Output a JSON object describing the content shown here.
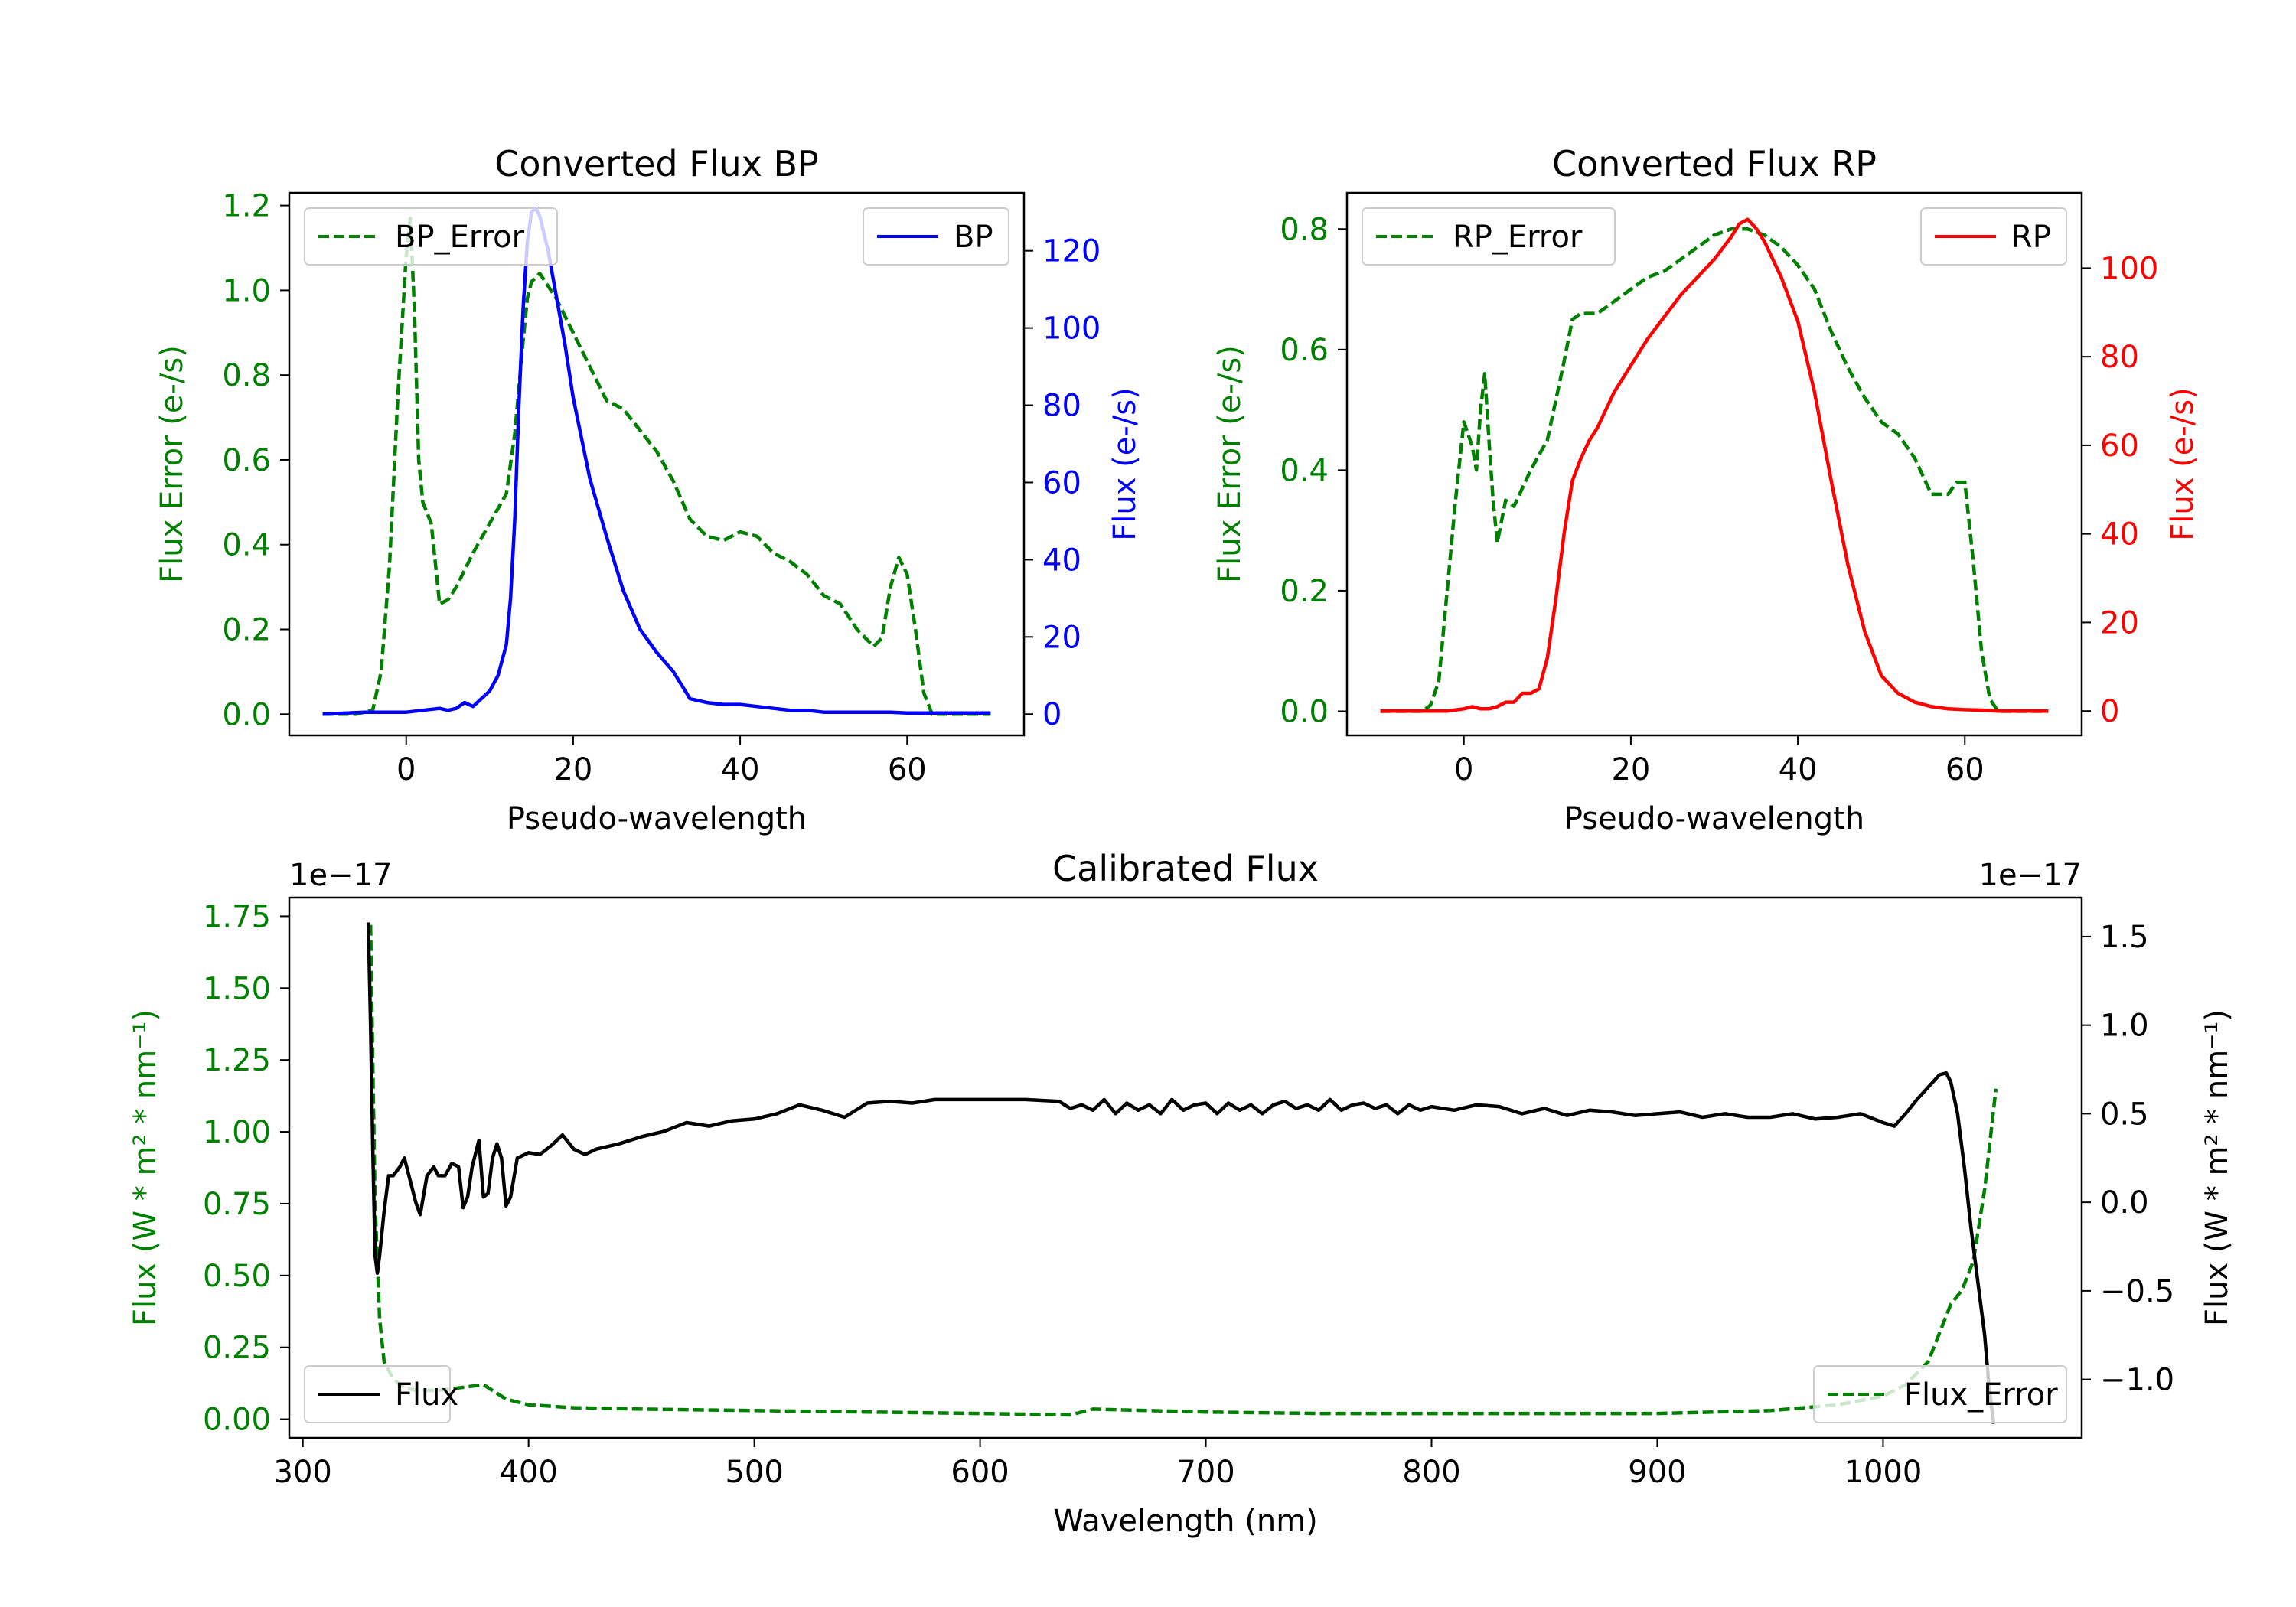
{
  "colors": {
    "bp": "#0000ff",
    "rp": "#ff0000",
    "error": "#008000",
    "flux": "#000000",
    "axes": "#000000",
    "legend_border": "#cccccc"
  },
  "chart_data": [
    {
      "id": "bp",
      "type": "line",
      "title": "Converted Flux BP",
      "xlabel": "Pseudo-wavelength",
      "ylabel_left": "Flux Error (e-/s)",
      "ylabel_right": "Flux (e-/s)",
      "xlim": [
        -14,
        74
      ],
      "ylim_left": [
        -0.05,
        1.23
      ],
      "ylim_right": [
        -5.5,
        135
      ],
      "xticks": [
        0,
        20,
        40,
        60
      ],
      "xtick_labels": [
        "0",
        "20",
        "40",
        "60"
      ],
      "yticks_left": [
        0.0,
        0.2,
        0.4,
        0.6,
        0.8,
        1.0,
        1.2
      ],
      "ytick_labels_left": [
        "0.0",
        "0.2",
        "0.4",
        "0.6",
        "0.8",
        "1.0",
        "1.2"
      ],
      "yticks_right": [
        0,
        20,
        40,
        60,
        80,
        100,
        120
      ],
      "ytick_labels_right": [
        "0",
        "20",
        "40",
        "60",
        "80",
        "100",
        "120"
      ],
      "legend_left": "BP_Error",
      "legend_right": "BP",
      "series": [
        {
          "name": "BP_Error",
          "axis": "left",
          "style": "dashed",
          "color": "#008000",
          "x": [
            -10,
            -6,
            -4,
            -3,
            -2,
            -1,
            0,
            0.5,
            1,
            1.5,
            2,
            3,
            4,
            5,
            6,
            8,
            10,
            12,
            13,
            14,
            14.5,
            15,
            16,
            17,
            18,
            20,
            22,
            24,
            26,
            28,
            30,
            32,
            34,
            36,
            38,
            40,
            42,
            44,
            46,
            48,
            50,
            52,
            54,
            56,
            57,
            58,
            59,
            60,
            61,
            62,
            63,
            64,
            66,
            68,
            70
          ],
          "y": [
            0,
            0,
            0.01,
            0.1,
            0.35,
            0.75,
            1.08,
            1.17,
            0.95,
            0.6,
            0.5,
            0.45,
            0.26,
            0.27,
            0.3,
            0.38,
            0.45,
            0.52,
            0.66,
            0.88,
            0.98,
            1.02,
            1.04,
            1.01,
            0.98,
            0.9,
            0.82,
            0.74,
            0.72,
            0.67,
            0.62,
            0.55,
            0.46,
            0.42,
            0.41,
            0.43,
            0.42,
            0.38,
            0.36,
            0.33,
            0.28,
            0.26,
            0.2,
            0.16,
            0.18,
            0.3,
            0.37,
            0.33,
            0.2,
            0.05,
            0,
            0,
            0,
            0,
            0
          ]
        },
        {
          "name": "BP",
          "axis": "right",
          "style": "solid",
          "color": "#0000ff",
          "x": [
            -10,
            -5,
            0,
            2,
            4,
            5,
            6,
            7,
            8,
            9,
            10,
            11,
            12,
            12.5,
            13,
            13.5,
            14,
            14.5,
            15,
            15.5,
            16,
            17,
            18,
            19,
            20,
            22,
            24,
            26,
            28,
            30,
            32,
            34,
            36,
            38,
            40,
            42,
            44,
            46,
            48,
            50,
            52,
            54,
            56,
            58,
            60,
            62,
            64,
            66,
            68,
            70
          ],
          "y": [
            0,
            0.5,
            0.5,
            1,
            1.5,
            1,
            1.5,
            3,
            2,
            4,
            6,
            10,
            18,
            30,
            50,
            80,
            105,
            122,
            130,
            131,
            129,
            120,
            108,
            96,
            82,
            61,
            46,
            32,
            22,
            16,
            11,
            4,
            3,
            2.5,
            2.5,
            2,
            1.5,
            1,
            1,
            0.5,
            0.5,
            0.5,
            0.5,
            0.5,
            0.3,
            0.3,
            0.3,
            0.3,
            0.3,
            0.3
          ]
        }
      ]
    },
    {
      "id": "rp",
      "type": "line",
      "title": "Converted Flux RP",
      "xlabel": "Pseudo-wavelength",
      "ylabel_left": "Flux Error (e-/s)",
      "ylabel_right": "Flux (e-/s)",
      "xlim": [
        -14,
        74
      ],
      "ylim_left": [
        -0.04,
        0.86
      ],
      "ylim_right": [
        -5.5,
        117
      ],
      "xticks": [
        0,
        20,
        40,
        60
      ],
      "xtick_labels": [
        "0",
        "20",
        "40",
        "60"
      ],
      "yticks_left": [
        0.0,
        0.2,
        0.4,
        0.6,
        0.8
      ],
      "ytick_labels_left": [
        "0.0",
        "0.2",
        "0.4",
        "0.6",
        "0.8"
      ],
      "yticks_right": [
        0,
        20,
        40,
        60,
        80,
        100
      ],
      "ytick_labels_right": [
        "0",
        "20",
        "40",
        "60",
        "80",
        "100"
      ],
      "legend_left": "RP_Error",
      "legend_right": "RP",
      "series": [
        {
          "name": "RP_Error",
          "axis": "left",
          "style": "dashed",
          "color": "#008000",
          "x": [
            -10,
            -5,
            -4,
            -3,
            -2,
            -1,
            0,
            1,
            1.5,
            2,
            2.5,
            3,
            3.5,
            4,
            5,
            6,
            8,
            10,
            12,
            13,
            14,
            16,
            18,
            20,
            22,
            24,
            26,
            28,
            30,
            32,
            34,
            36,
            38,
            40,
            42,
            44,
            46,
            48,
            50,
            52,
            54,
            56,
            57,
            58,
            59,
            60,
            61,
            62,
            63,
            64,
            65,
            66,
            68,
            70
          ],
          "y": [
            0,
            0,
            0.01,
            0.05,
            0.2,
            0.35,
            0.48,
            0.44,
            0.4,
            0.5,
            0.56,
            0.45,
            0.35,
            0.28,
            0.35,
            0.34,
            0.4,
            0.45,
            0.58,
            0.65,
            0.66,
            0.66,
            0.68,
            0.7,
            0.72,
            0.73,
            0.75,
            0.77,
            0.79,
            0.8,
            0.8,
            0.79,
            0.77,
            0.74,
            0.7,
            0.63,
            0.57,
            0.52,
            0.48,
            0.46,
            0.42,
            0.36,
            0.36,
            0.36,
            0.38,
            0.38,
            0.25,
            0.1,
            0.02,
            0,
            0,
            0,
            0,
            0
          ]
        },
        {
          "name": "RP",
          "axis": "right",
          "style": "solid",
          "color": "#ff0000",
          "x": [
            -10,
            -5,
            -2,
            0,
            1,
            2,
            3,
            4,
            5,
            6,
            7,
            8,
            9,
            10,
            11,
            12,
            13,
            14,
            15,
            16,
            18,
            20,
            22,
            24,
            26,
            28,
            30,
            32,
            33,
            34,
            35,
            36,
            38,
            40,
            42,
            44,
            46,
            48,
            50,
            52,
            54,
            56,
            58,
            60,
            62,
            64,
            66,
            68,
            70
          ],
          "y": [
            0,
            0,
            0,
            0.5,
            1,
            0.5,
            0.5,
            1,
            2,
            2,
            4,
            4,
            5,
            12,
            25,
            40,
            52,
            57,
            61,
            64,
            72,
            78,
            84,
            89,
            94,
            98,
            102,
            107,
            110,
            111,
            109,
            106,
            98,
            88,
            72,
            52,
            33,
            18,
            8,
            4,
            2,
            1,
            0.5,
            0.3,
            0.2,
            0,
            0,
            0,
            0
          ]
        }
      ]
    },
    {
      "id": "calibrated",
      "type": "line",
      "title": "Calibrated Flux",
      "xlabel": "Wavelength (nm)",
      "ylabel_left": "Flux (W * m² * nm⁻¹)",
      "ylabel_right": "Flux (W * m² * nm⁻¹)",
      "offset_left": "1e−17",
      "offset_right": "1e−17",
      "xlim": [
        294,
        1088
      ],
      "ylim_left": [
        -0.065,
        1.815
      ],
      "ylim_right": [
        -1.33,
        1.72
      ],
      "xticks": [
        300,
        400,
        500,
        600,
        700,
        800,
        900,
        1000
      ],
      "xtick_labels": [
        "300",
        "400",
        "500",
        "600",
        "700",
        "800",
        "900",
        "1000"
      ],
      "yticks_left": [
        0.0,
        0.25,
        0.5,
        0.75,
        1.0,
        1.25,
        1.5,
        1.75
      ],
      "ytick_labels_left": [
        "0.00",
        "0.25",
        "0.50",
        "0.75",
        "1.00",
        "1.25",
        "1.50",
        "1.75"
      ],
      "yticks_right": [
        -1.0,
        -0.5,
        0.0,
        0.5,
        1.0,
        1.5
      ],
      "ytick_labels_right": [
        "−1.0",
        "−0.5",
        "0.0",
        "0.5",
        "1.0",
        "1.5"
      ],
      "legend_left": "Flux",
      "legend_right": "Flux_Error",
      "series": [
        {
          "name": "Flux_Error",
          "axis": "left",
          "style": "dashed",
          "color": "#008000",
          "x": [
            330,
            332,
            334,
            336,
            340,
            345,
            350,
            360,
            370,
            380,
            390,
            400,
            420,
            450,
            500,
            550,
            600,
            640,
            650,
            700,
            750,
            800,
            850,
            900,
            950,
            980,
            1000,
            1010,
            1020,
            1025,
            1030,
            1035,
            1040,
            1045,
            1050
          ],
          "y": [
            1.72,
            0.75,
            0.35,
            0.2,
            0.14,
            0.11,
            0.1,
            0.1,
            0.11,
            0.12,
            0.07,
            0.05,
            0.04,
            0.035,
            0.03,
            0.025,
            0.02,
            0.015,
            0.035,
            0.025,
            0.02,
            0.02,
            0.02,
            0.02,
            0.03,
            0.05,
            0.08,
            0.12,
            0.2,
            0.3,
            0.4,
            0.45,
            0.55,
            0.8,
            1.15
          ]
        },
        {
          "name": "Flux",
          "axis": "right",
          "style": "solid",
          "color": "#000000",
          "x": [
            329,
            330,
            331,
            332,
            333,
            334,
            336,
            338,
            340,
            343,
            345,
            348,
            350,
            352,
            355,
            358,
            360,
            363,
            366,
            369,
            371,
            373,
            375,
            378,
            380,
            382,
            384,
            386,
            388,
            390,
            392,
            395,
            400,
            405,
            410,
            415,
            420,
            425,
            430,
            440,
            450,
            460,
            470,
            480,
            490,
            500,
            510,
            520,
            530,
            540,
            550,
            560,
            570,
            580,
            600,
            620,
            635,
            640,
            645,
            650,
            655,
            660,
            665,
            670,
            675,
            680,
            685,
            690,
            695,
            700,
            705,
            710,
            715,
            720,
            725,
            730,
            735,
            740,
            745,
            750,
            755,
            760,
            765,
            770,
            775,
            780,
            785,
            790,
            795,
            800,
            810,
            820,
            830,
            840,
            850,
            860,
            870,
            880,
            890,
            900,
            910,
            920,
            930,
            940,
            950,
            960,
            970,
            980,
            990,
            1000,
            1005,
            1010,
            1015,
            1020,
            1025,
            1028,
            1030,
            1033,
            1036,
            1039,
            1042,
            1045,
            1047,
            1049
          ],
          "y": [
            1.58,
            1.0,
            0.3,
            -0.3,
            -0.4,
            -0.3,
            -0.05,
            0.15,
            0.15,
            0.2,
            0.25,
            0.1,
            0.0,
            -0.07,
            0.15,
            0.2,
            0.15,
            0.15,
            0.22,
            0.2,
            -0.03,
            0.03,
            0.2,
            0.35,
            0.03,
            0.05,
            0.25,
            0.33,
            0.25,
            -0.02,
            0.03,
            0.25,
            0.28,
            0.27,
            0.32,
            0.38,
            0.3,
            0.27,
            0.3,
            0.33,
            0.37,
            0.4,
            0.45,
            0.43,
            0.46,
            0.47,
            0.5,
            0.55,
            0.52,
            0.48,
            0.56,
            0.57,
            0.56,
            0.58,
            0.58,
            0.58,
            0.57,
            0.53,
            0.55,
            0.52,
            0.58,
            0.5,
            0.56,
            0.52,
            0.55,
            0.5,
            0.58,
            0.52,
            0.55,
            0.56,
            0.5,
            0.56,
            0.52,
            0.55,
            0.5,
            0.55,
            0.57,
            0.53,
            0.55,
            0.52,
            0.58,
            0.52,
            0.55,
            0.56,
            0.53,
            0.55,
            0.5,
            0.55,
            0.52,
            0.54,
            0.52,
            0.55,
            0.54,
            0.5,
            0.53,
            0.49,
            0.52,
            0.51,
            0.49,
            0.5,
            0.51,
            0.48,
            0.5,
            0.48,
            0.48,
            0.5,
            0.47,
            0.48,
            0.5,
            0.45,
            0.43,
            0.5,
            0.58,
            0.65,
            0.72,
            0.73,
            0.68,
            0.5,
            0.2,
            -0.15,
            -0.45,
            -0.75,
            -1.05,
            -1.25
          ]
        }
      ]
    }
  ]
}
